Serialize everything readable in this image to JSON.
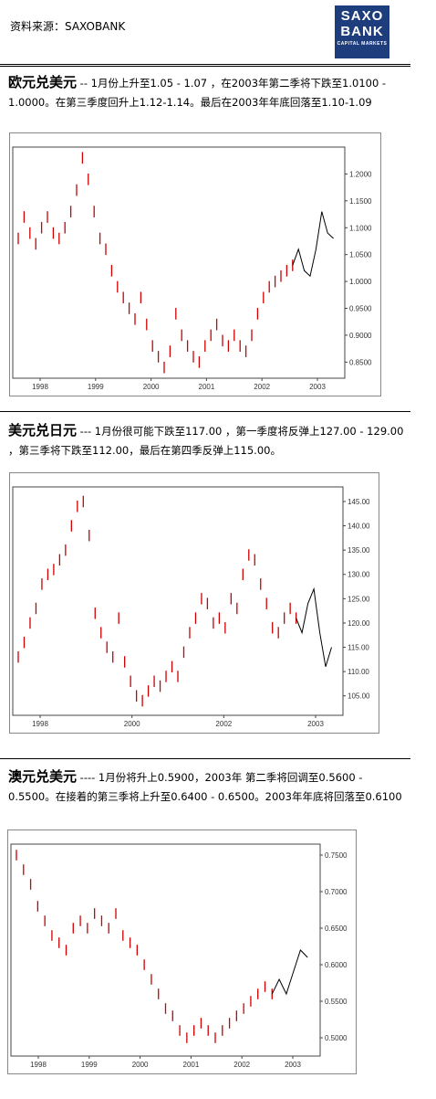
{
  "source_label": "资料来源：SAXOBANK",
  "logo": {
    "line1": "SAXO",
    "line2": "BANK",
    "line3": "CAPITAL MARKETS"
  },
  "sections": [
    {
      "heading": "欧元兑美元",
      "text": " -- 1月份上升至1.05 - 1.07 ，在2003年第二季将下跌至1.0100 - 1.0000。在第三季度回升上1.12-1.14。最后在2003年年底回落至1.10-1.09"
    },
    {
      "heading": "美元兑日元",
      "text": " --- 1月份很可能下跌至117.00 ，第一季度将反弹上127.00 - 129.00 ，第三季将下跌至112.00，最后在第四季反弹上115.00。"
    },
    {
      "heading": "澳元兑美元",
      "text": " ---- 1月份将升上0.5900，2003年 第二季将回调至0.5600 - 0.5500。在接着的第三季将上升至0.6400 - 0.6500。2003年年底将回落至0.6100"
    }
  ],
  "chart_data": [
    {
      "type": "line",
      "title": "",
      "x_labels": [
        "1998",
        "1999",
        "2000",
        "2001",
        "2002",
        "2003"
      ],
      "y_ticks": [
        "1.2000",
        "1.1500",
        "1.1000",
        "1.0500",
        "1.0000",
        "0.9500",
        "0.9000",
        "0.8500"
      ],
      "ylim": [
        0.82,
        1.25
      ],
      "red_color": "#cc0000",
      "forecast_color": "#000000",
      "series": [
        {
          "values": [
            1.08,
            1.12,
            1.09,
            1.07,
            1.1,
            1.12,
            1.09,
            1.08,
            1.1,
            1.13,
            1.17,
            1.23,
            1.19,
            1.13,
            1.08,
            1.06,
            1.02,
            0.99,
            0.97,
            0.95,
            0.93,
            0.97,
            0.92,
            0.88,
            0.86,
            0.84,
            0.87,
            0.94,
            0.9,
            0.88,
            0.86,
            0.85,
            0.88,
            0.9,
            0.92,
            0.89,
            0.88,
            0.9,
            0.88,
            0.87,
            0.9,
            0.94,
            0.97,
            0.99,
            1.0,
            1.01,
            1.02,
            1.03
          ]
        }
      ],
      "forecast": [
        1.03,
        1.06,
        1.02,
        1.01,
        1.06,
        1.13,
        1.09,
        1.08
      ]
    },
    {
      "type": "line",
      "title": "",
      "x_labels": [
        "1998",
        "2000",
        "2002",
        "2003"
      ],
      "y_ticks": [
        "145.00",
        "140.00",
        "135.00",
        "130.00",
        "125.00",
        "120.00",
        "115.00",
        "110.00",
        "105.00"
      ],
      "ylim": [
        101,
        148
      ],
      "red_color": "#cc0000",
      "forecast_color": "#000000",
      "series": [
        {
          "values": [
            113,
            116,
            120,
            123,
            128,
            130,
            131,
            133,
            135,
            140,
            144,
            145,
            138,
            122,
            118,
            115,
            113,
            121,
            112,
            108,
            105,
            104,
            106,
            108,
            107,
            109,
            111,
            109,
            114,
            118,
            121,
            125,
            124,
            120,
            121,
            119,
            125,
            123,
            130,
            134,
            133,
            128,
            124,
            119,
            118,
            121,
            123,
            121
          ]
        }
      ],
      "forecast": [
        121,
        118,
        124,
        127,
        118,
        111,
        115
      ]
    },
    {
      "type": "line",
      "title": "",
      "x_labels": [
        "1998",
        "1999",
        "2000",
        "2001",
        "2002",
        "2003"
      ],
      "y_ticks": [
        "0.7500",
        "0.7000",
        "0.6500",
        "0.6000",
        "0.5500",
        "0.5000"
      ],
      "ylim": [
        0.475,
        0.765
      ],
      "red_color": "#cc0000",
      "forecast_color": "#000000",
      "series": [
        {
          "values": [
            0.75,
            0.73,
            0.71,
            0.68,
            0.66,
            0.64,
            0.63,
            0.62,
            0.65,
            0.66,
            0.65,
            0.67,
            0.66,
            0.65,
            0.67,
            0.64,
            0.63,
            0.62,
            0.6,
            0.58,
            0.56,
            0.54,
            0.53,
            0.51,
            0.5,
            0.51,
            0.52,
            0.51,
            0.5,
            0.51,
            0.52,
            0.53,
            0.54,
            0.55,
            0.56,
            0.57,
            0.56
          ]
        }
      ],
      "forecast": [
        0.56,
        0.58,
        0.56,
        0.59,
        0.62,
        0.61
      ]
    }
  ]
}
